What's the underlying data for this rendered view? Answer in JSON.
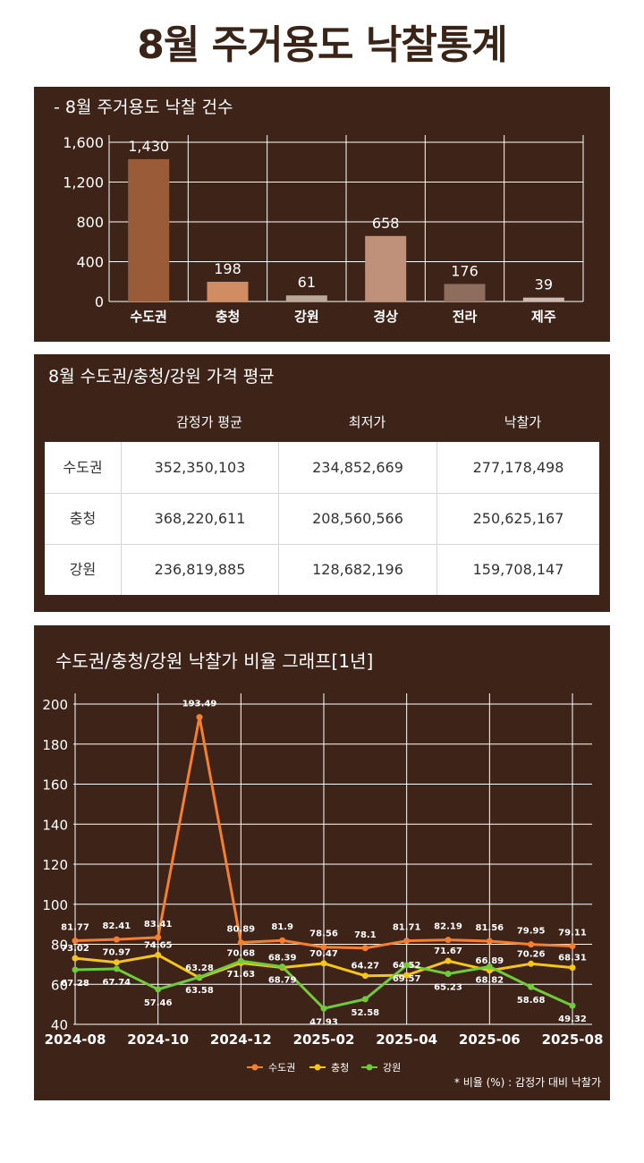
{
  "title": "8월 주거용도 낙찰통계",
  "bar_panel": {
    "title": "- 8월 주거용도 낙찰 건수"
  },
  "table_panel": {
    "title": "8월 수도권/충청/강원 가격 평균",
    "headers": [
      "감정가 평균",
      "최저가",
      "낙찰가"
    ],
    "rows": [
      {
        "region": "수도권",
        "values": [
          "352,350,103",
          "234,852,669",
          "277,178,498"
        ]
      },
      {
        "region": "충청",
        "values": [
          "368,220,611",
          "208,560,566",
          "250,625,167"
        ]
      },
      {
        "region": "강원",
        "values": [
          "236,819,885",
          "128,682,196",
          "159,708,147"
        ]
      }
    ]
  },
  "line_panel": {
    "title": "수도권/충청/강원 낙찰가 비율 그래프[1년]",
    "note": "* 비율 (%) : 감정가 대비 낙찰가"
  },
  "chart_data": [
    {
      "type": "bar",
      "title": "- 8월 주거용도 낙찰 건수",
      "categories": [
        "수도권",
        "충청",
        "강원",
        "경상",
        "전라",
        "제주"
      ],
      "values": [
        1430,
        198,
        61,
        658,
        176,
        39
      ],
      "value_labels": [
        "1,430",
        "198",
        "61",
        "658",
        "176",
        "39"
      ],
      "colors": [
        "#9a5c38",
        "#d08c62",
        "#baa898",
        "#c0917a",
        "#8e6c5e",
        "#cdbab0"
      ],
      "ylim": [
        0,
        1600
      ],
      "yticks": [
        0,
        400,
        800,
        1200,
        1600
      ],
      "ytick_labels": [
        "0",
        "400",
        "800",
        "1,200",
        "1,600"
      ],
      "grid": true
    },
    {
      "type": "line",
      "title": "수도권/충청/강원 낙찰가 비율 그래프[1년]",
      "x": [
        "2024-08",
        "2024-09",
        "2024-10",
        "2024-11",
        "2024-12",
        "2025-01",
        "2025-02",
        "2025-03",
        "2025-04",
        "2025-05",
        "2025-06",
        "2025-07",
        "2025-08"
      ],
      "xtick_labels": [
        "2024-08",
        "2024-10",
        "2024-12",
        "2025-02",
        "2025-04",
        "2025-06",
        "2025-08"
      ],
      "ylim": [
        40,
        200
      ],
      "yticks": [
        40,
        60,
        80,
        100,
        120,
        140,
        160,
        180,
        200
      ],
      "grid": true,
      "legend": "bottom-center",
      "series": [
        {
          "name": "수도권",
          "color": "#f47f2f",
          "values": [
            81.77,
            82.41,
            83.41,
            193.49,
            80.89,
            81.9,
            78.56,
            78.1,
            81.71,
            82.19,
            81.56,
            79.95,
            79.11
          ]
        },
        {
          "name": "충청",
          "color": "#f5c518",
          "values": [
            73.02,
            70.97,
            74.65,
            63.28,
            70.68,
            68.39,
            70.47,
            64.27,
            64.52,
            71.67,
            66.89,
            70.26,
            68.31
          ]
        },
        {
          "name": "강원",
          "color": "#6fcb3a",
          "values": [
            67.28,
            67.74,
            57.46,
            63.58,
            71.63,
            68.79,
            47.93,
            52.58,
            69.57,
            65.23,
            68.82,
            58.68,
            49.32
          ]
        }
      ]
    }
  ]
}
